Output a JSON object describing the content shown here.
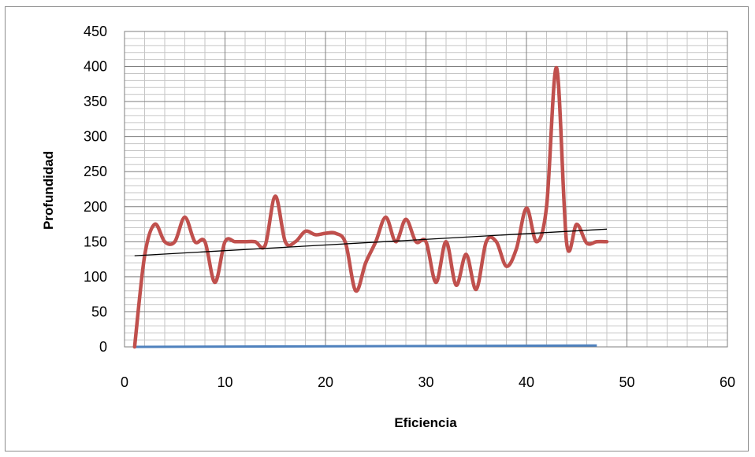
{
  "chart_data": {
    "type": "line",
    "title": "",
    "xlabel": "Eficiencia",
    "ylabel": "Profundidad",
    "xlim": [
      0,
      60
    ],
    "ylim": [
      0,
      450
    ],
    "x_ticks": [
      "0",
      "10",
      "20",
      "30",
      "40",
      "50",
      "60"
    ],
    "y_ticks": [
      "0",
      "50",
      "100",
      "150",
      "200",
      "250",
      "300",
      "350",
      "400",
      "450"
    ],
    "grid": true,
    "legend": "none",
    "series": [
      {
        "color": "#c0504d",
        "style": "smoothed line",
        "points": [
          [
            1,
            0
          ],
          [
            2,
            130
          ],
          [
            3,
            175
          ],
          [
            4,
            150
          ],
          [
            5,
            150
          ],
          [
            6,
            185
          ],
          [
            7,
            150
          ],
          [
            8,
            150
          ],
          [
            9,
            92
          ],
          [
            10,
            150
          ],
          [
            11,
            150
          ],
          [
            12,
            150
          ],
          [
            13,
            150
          ],
          [
            14,
            145
          ],
          [
            15,
            215
          ],
          [
            16,
            150
          ],
          [
            17,
            150
          ],
          [
            18,
            165
          ],
          [
            19,
            160
          ],
          [
            20,
            162
          ],
          [
            21,
            162
          ],
          [
            22,
            148
          ],
          [
            23,
            80
          ],
          [
            24,
            120
          ],
          [
            25,
            150
          ],
          [
            26,
            185
          ],
          [
            27,
            150
          ],
          [
            28,
            182
          ],
          [
            29,
            150
          ],
          [
            30,
            150
          ],
          [
            31,
            92
          ],
          [
            32,
            150
          ],
          [
            33,
            88
          ],
          [
            34,
            132
          ],
          [
            35,
            82
          ],
          [
            36,
            150
          ],
          [
            37,
            150
          ],
          [
            38,
            115
          ],
          [
            39,
            140
          ],
          [
            40,
            198
          ],
          [
            41,
            150
          ],
          [
            42,
            200
          ],
          [
            43,
            398
          ],
          [
            44,
            148
          ],
          [
            45,
            175
          ],
          [
            46,
            148
          ],
          [
            47,
            150
          ],
          [
            48,
            150
          ]
        ]
      },
      {
        "color": "#4f81bd",
        "style": "line",
        "points": [
          [
            1,
            0
          ],
          [
            47,
            2
          ]
        ]
      }
    ],
    "trendline": {
      "type": "linear",
      "color": "#000000",
      "points": [
        [
          1,
          130
        ],
        [
          48,
          168
        ]
      ]
    }
  }
}
